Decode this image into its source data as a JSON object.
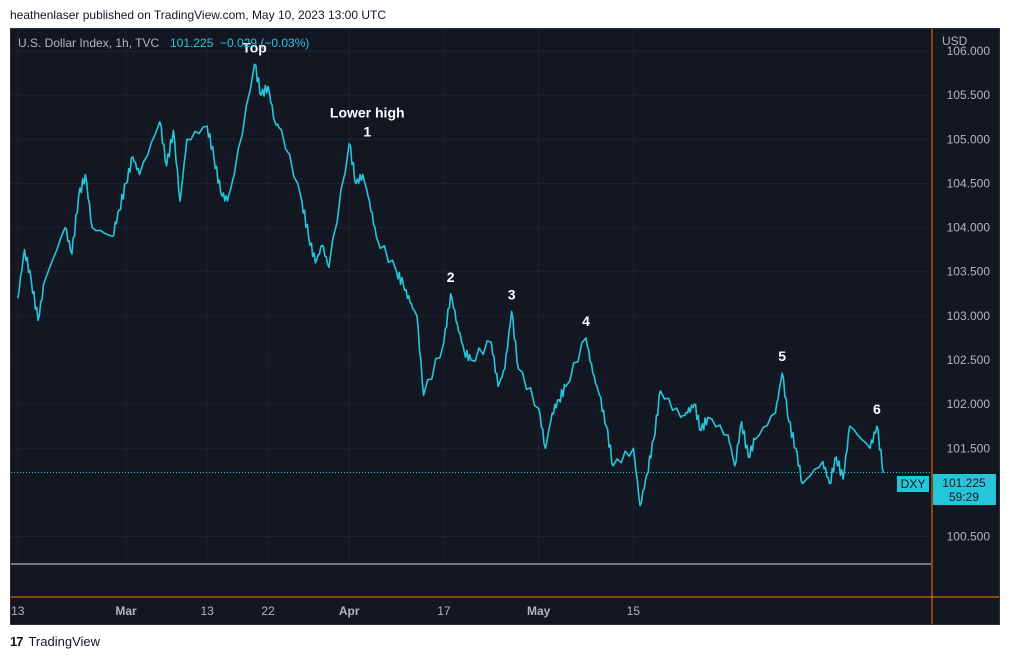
{
  "header": {
    "text": "heathenlaser published on TradingView.com, May 10, 2023 13:00 UTC"
  },
  "legend": {
    "symbol": "U.S. Dollar Index, 1h, TVC",
    "price": "101.225",
    "change": "−0.029 (−0.03%)"
  },
  "price_axis": {
    "currency": "USD"
  },
  "last_price_tag": {
    "symbol": "DXY",
    "price": "101.225",
    "countdown": "59:29"
  },
  "footer": {
    "brand": "TradingView",
    "logo": "17"
  },
  "colors": {
    "background": "#131722",
    "line": "#26c6da",
    "grid": "#2a2e39",
    "text": "#b2b5be",
    "accent": "#f57c00"
  },
  "chart_data": {
    "type": "line",
    "title": "U.S. Dollar Index, 1h, TVC",
    "ylim": [
      100.2,
      106.25
    ],
    "yticks": [
      106.0,
      105.5,
      105.0,
      104.5,
      104.0,
      103.5,
      103.0,
      102.5,
      102.0,
      101.5,
      100.5
    ],
    "ytick_labels": [
      "106.000",
      "105.500",
      "105.000",
      "104.500",
      "104.000",
      "103.500",
      "103.000",
      "102.500",
      "102.000",
      "101.500",
      "100.500"
    ],
    "xticks": [
      {
        "label": "13",
        "x": "2023-02-13",
        "bold": false
      },
      {
        "label": "Mar",
        "x": "2023-03-01",
        "bold": true
      },
      {
        "label": "13",
        "x": "2023-03-13",
        "bold": false
      },
      {
        "label": "22",
        "x": "2023-03-22",
        "bold": false
      },
      {
        "label": "Apr",
        "x": "2023-04-03",
        "bold": true
      },
      {
        "label": "17",
        "x": "2023-04-17",
        "bold": false
      },
      {
        "label": "May",
        "x": "2023-05-01",
        "bold": true
      },
      {
        "label": "15",
        "x": "2023-05-15",
        "bold": false
      }
    ],
    "last_value": 101.225,
    "series": [
      {
        "values": [
          [
            "2023-02-13",
            103.2
          ],
          [
            "2023-02-14",
            103.75
          ],
          [
            "2023-02-15",
            103.4
          ],
          [
            "2023-02-16",
            102.95
          ],
          [
            "2023-02-17",
            103.4
          ],
          [
            "2023-02-20",
            104.0
          ],
          [
            "2023-02-21",
            103.7
          ],
          [
            "2023-02-22",
            104.35
          ],
          [
            "2023-02-23",
            104.6
          ],
          [
            "2023-02-24",
            104.0
          ],
          [
            "2023-02-27",
            103.9
          ],
          [
            "2023-02-28",
            104.2
          ],
          [
            "2023-03-01",
            104.5
          ],
          [
            "2023-03-02",
            104.8
          ],
          [
            "2023-03-03",
            104.6
          ],
          [
            "2023-03-06",
            105.2
          ],
          [
            "2023-03-07",
            104.7
          ],
          [
            "2023-03-08",
            105.1
          ],
          [
            "2023-03-09",
            104.3
          ],
          [
            "2023-03-10",
            105.0
          ],
          [
            "2023-03-13",
            105.15
          ],
          [
            "2023-03-14",
            104.8
          ],
          [
            "2023-03-15",
            104.4
          ],
          [
            "2023-03-16",
            104.3
          ],
          [
            "2023-03-17",
            104.6
          ],
          [
            "2023-03-20",
            105.85
          ],
          [
            "2023-03-21",
            105.5
          ],
          [
            "2023-03-22",
            105.6
          ],
          [
            "2023-03-23",
            105.2
          ],
          [
            "2023-03-24",
            105.1
          ],
          [
            "2023-03-27",
            104.3
          ],
          [
            "2023-03-28",
            103.9
          ],
          [
            "2023-03-29",
            103.6
          ],
          [
            "2023-03-30",
            103.8
          ],
          [
            "2023-03-31",
            103.55
          ],
          [
            "2023-04-03",
            104.95
          ],
          [
            "2023-04-04",
            104.5
          ],
          [
            "2023-04-05",
            104.6
          ],
          [
            "2023-04-06",
            104.3
          ],
          [
            "2023-04-07",
            103.9
          ],
          [
            "2023-04-10",
            103.5
          ],
          [
            "2023-04-11",
            103.35
          ],
          [
            "2023-04-12",
            103.15
          ],
          [
            "2023-04-13",
            103.0
          ],
          [
            "2023-04-14",
            102.1
          ],
          [
            "2023-04-17",
            102.7
          ],
          [
            "2023-04-18",
            103.25
          ],
          [
            "2023-04-19",
            102.9
          ],
          [
            "2023-04-20",
            102.6
          ],
          [
            "2023-04-21",
            102.5
          ],
          [
            "2023-04-24",
            102.7
          ],
          [
            "2023-04-25",
            102.2
          ],
          [
            "2023-04-26",
            102.4
          ],
          [
            "2023-04-27",
            103.05
          ],
          [
            "2023-04-28",
            102.4
          ],
          [
            "2023-05-01",
            101.95
          ],
          [
            "2023-05-02",
            101.5
          ],
          [
            "2023-05-03",
            101.9
          ],
          [
            "2023-05-04",
            102.05
          ],
          [
            "2023-05-05",
            102.2
          ],
          [
            "2023-05-08",
            102.75
          ],
          [
            "2023-05-09",
            102.35
          ],
          [
            "2023-05-10",
            102.1
          ],
          [
            "2023-05-11",
            101.75
          ],
          [
            "2023-05-12",
            101.3
          ],
          [
            "2023-05-15",
            101.5
          ],
          [
            "2023-05-16",
            100.85
          ],
          [
            "2023-05-17",
            101.2
          ],
          [
            "2023-05-18",
            101.6
          ],
          [
            "2023-05-19",
            102.15
          ],
          [
            "2023-05-22",
            101.85
          ],
          [
            "2023-05-23",
            101.9
          ],
          [
            "2023-05-24",
            102.0
          ],
          [
            "2023-05-25",
            101.7
          ],
          [
            "2023-05-26",
            101.85
          ],
          [
            "2023-05-29",
            101.65
          ],
          [
            "2023-05-30",
            101.3
          ],
          [
            "2023-05-31",
            101.8
          ],
          [
            "2023-06-01",
            101.4
          ],
          [
            "2023-06-02",
            101.6
          ],
          [
            "2023-06-05",
            101.9
          ],
          [
            "2023-06-06",
            102.35
          ],
          [
            "2023-06-07",
            101.8
          ],
          [
            "2023-06-08",
            101.5
          ],
          [
            "2023-06-09",
            101.1
          ],
          [
            "2023-06-12",
            101.35
          ],
          [
            "2023-06-13",
            101.1
          ],
          [
            "2023-06-14",
            101.4
          ],
          [
            "2023-06-15",
            101.15
          ],
          [
            "2023-06-16",
            101.75
          ],
          [
            "2023-06-19",
            101.5
          ],
          [
            "2023-06-20",
            101.75
          ],
          [
            "2023-06-21",
            101.22
          ]
        ]
      }
    ],
    "annotations": [
      {
        "label": "Top",
        "x": "2023-03-20",
        "y": 105.85
      },
      {
        "label": "Lower high",
        "x": "2023-04-03",
        "y": 104.95,
        "number": "1"
      },
      {
        "label": "2",
        "x": "2023-04-18",
        "y": 103.25
      },
      {
        "label": "3",
        "x": "2023-04-27",
        "y": 103.05
      },
      {
        "label": "4",
        "x": "2023-05-08",
        "y": 102.75
      },
      {
        "label": "5",
        "x": "2023-06-06",
        "y": 102.35
      },
      {
        "label": "6",
        "x": "2023-06-20",
        "y": 101.75
      }
    ]
  }
}
